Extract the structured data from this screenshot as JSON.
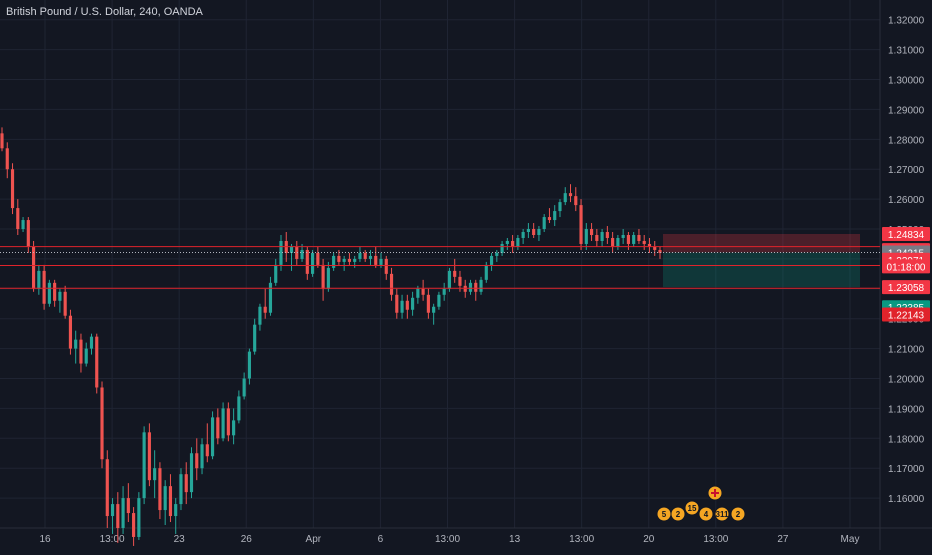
{
  "header": {
    "symbol_title": "British Pound / U.S. Dollar, 240, OANDA"
  },
  "colors": {
    "background": "#131722",
    "grid": "#1f2433",
    "text": "#b2b5be",
    "up": "#26a69a",
    "down": "#ef5350",
    "hline": "#e0232b",
    "current_price_tag": "#787b86",
    "stop_zone": "#f23645",
    "target_zone": "#089981"
  },
  "chart_data": {
    "type": "candlestick",
    "symbol": "GBPUSD",
    "interval": "240",
    "source": "OANDA",
    "ylim": [
      1.15,
      1.3266
    ],
    "y_ticks": [
      "1.32000",
      "1.31000",
      "1.30000",
      "1.29000",
      "1.28000",
      "1.27000",
      "1.26000",
      "1.25000",
      "1.24000",
      "1.23000",
      "1.22000",
      "1.21000",
      "1.20000",
      "1.19000",
      "1.18000",
      "1.17000",
      "1.16000"
    ],
    "x_ticks": [
      "16",
      "13:00",
      "23",
      "26",
      "Apr",
      "6",
      "13:00",
      "13",
      "13:00",
      "20",
      "13:00",
      "27",
      "May"
    ],
    "price_levels": [
      {
        "label": "1.24834",
        "value": 1.24834,
        "color": "#f23645"
      },
      {
        "label": "1.24296",
        "value": 1.24296,
        "color": "#f23645"
      },
      {
        "label": "1.24215",
        "value": 1.24215,
        "color": "#787b86"
      },
      {
        "label": "1.23971",
        "value": 1.23971,
        "color": "#f23645"
      },
      {
        "label": "01:18:00",
        "value": 1.2375,
        "color": "#f23645"
      },
      {
        "label": "1.23058",
        "value": 1.23058,
        "color": "#f23645"
      },
      {
        "label": "1.22385",
        "value": 1.22385,
        "color": "#089981"
      },
      {
        "label": "1.22143",
        "value": 1.22143,
        "color": "#e0232b"
      }
    ],
    "horizontal_lines": [
      1.2441,
      1.2378,
      1.2302
    ],
    "dotted_line": 1.24215,
    "position_tool": {
      "entry": 1.24215,
      "stop": 1.24834,
      "target": 1.23058
    },
    "events": [
      "5",
      "2",
      "15",
      "4",
      "311",
      "2"
    ],
    "candles": [
      [
        1.282,
        1.284,
        1.276,
        1.277
      ],
      [
        1.277,
        1.279,
        1.267,
        1.27
      ],
      [
        1.27,
        1.272,
        1.255,
        1.257
      ],
      [
        1.257,
        1.26,
        1.248,
        1.25
      ],
      [
        1.25,
        1.254,
        1.249,
        1.253
      ],
      [
        1.253,
        1.254,
        1.242,
        1.244
      ],
      [
        1.244,
        1.246,
        1.229,
        1.23
      ],
      [
        1.23,
        1.238,
        1.228,
        1.236
      ],
      [
        1.236,
        1.238,
        1.223,
        1.225
      ],
      [
        1.225,
        1.233,
        1.224,
        1.232
      ],
      [
        1.232,
        1.233,
        1.224,
        1.226
      ],
      [
        1.226,
        1.23,
        1.222,
        1.229
      ],
      [
        1.229,
        1.231,
        1.22,
        1.221
      ],
      [
        1.221,
        1.223,
        1.208,
        1.21
      ],
      [
        1.21,
        1.216,
        1.205,
        1.213
      ],
      [
        1.213,
        1.215,
        1.202,
        1.205
      ],
      [
        1.205,
        1.212,
        1.204,
        1.21
      ],
      [
        1.21,
        1.215,
        1.208,
        1.214
      ],
      [
        1.214,
        1.215,
        1.195,
        1.197
      ],
      [
        1.197,
        1.199,
        1.17,
        1.173
      ],
      [
        1.173,
        1.176,
        1.15,
        1.154
      ],
      [
        1.154,
        1.16,
        1.148,
        1.158
      ],
      [
        1.158,
        1.162,
        1.145,
        1.15
      ],
      [
        1.15,
        1.164,
        1.148,
        1.16
      ],
      [
        1.16,
        1.165,
        1.152,
        1.155
      ],
      [
        1.155,
        1.157,
        1.144,
        1.147
      ],
      [
        1.147,
        1.162,
        1.146,
        1.16
      ],
      [
        1.16,
        1.184,
        1.158,
        1.182
      ],
      [
        1.182,
        1.185,
        1.164,
        1.166
      ],
      [
        1.166,
        1.176,
        1.16,
        1.17
      ],
      [
        1.17,
        1.172,
        1.153,
        1.156
      ],
      [
        1.156,
        1.166,
        1.151,
        1.164
      ],
      [
        1.164,
        1.168,
        1.152,
        1.154
      ],
      [
        1.154,
        1.16,
        1.148,
        1.158
      ],
      [
        1.158,
        1.17,
        1.156,
        1.168
      ],
      [
        1.168,
        1.172,
        1.158,
        1.162
      ],
      [
        1.162,
        1.177,
        1.16,
        1.175
      ],
      [
        1.175,
        1.18,
        1.166,
        1.17
      ],
      [
        1.17,
        1.18,
        1.168,
        1.178
      ],
      [
        1.178,
        1.185,
        1.172,
        1.174
      ],
      [
        1.174,
        1.189,
        1.173,
        1.187
      ],
      [
        1.187,
        1.19,
        1.178,
        1.18
      ],
      [
        1.18,
        1.192,
        1.179,
        1.19
      ],
      [
        1.19,
        1.192,
        1.179,
        1.181
      ],
      [
        1.181,
        1.19,
        1.178,
        1.186
      ],
      [
        1.186,
        1.196,
        1.185,
        1.194
      ],
      [
        1.194,
        1.202,
        1.193,
        1.2
      ],
      [
        1.2,
        1.21,
        1.198,
        1.209
      ],
      [
        1.209,
        1.22,
        1.208,
        1.218
      ],
      [
        1.218,
        1.225,
        1.216,
        1.224
      ],
      [
        1.224,
        1.23,
        1.22,
        1.222
      ],
      [
        1.222,
        1.234,
        1.221,
        1.232
      ],
      [
        1.232,
        1.24,
        1.231,
        1.238
      ],
      [
        1.238,
        1.248,
        1.236,
        1.246
      ],
      [
        1.246,
        1.249,
        1.239,
        1.242
      ],
      [
        1.242,
        1.245,
        1.236,
        1.244
      ],
      [
        1.244,
        1.246,
        1.238,
        1.24
      ],
      [
        1.24,
        1.245,
        1.239,
        1.243
      ],
      [
        1.243,
        1.244,
        1.233,
        1.235
      ],
      [
        1.235,
        1.243,
        1.234,
        1.242
      ],
      [
        1.242,
        1.244,
        1.237,
        1.238
      ],
      [
        1.238,
        1.24,
        1.226,
        1.23
      ],
      [
        1.23,
        1.239,
        1.229,
        1.237
      ],
      [
        1.237,
        1.242,
        1.236,
        1.241
      ],
      [
        1.241,
        1.243,
        1.238,
        1.239
      ],
      [
        1.239,
        1.241,
        1.236,
        1.24
      ],
      [
        1.24,
        1.242,
        1.238,
        1.239
      ],
      [
        1.239,
        1.241,
        1.237,
        1.24
      ],
      [
        1.24,
        1.244,
        1.239,
        1.242
      ],
      [
        1.242,
        1.243,
        1.239,
        1.24
      ],
      [
        1.24,
        1.243,
        1.238,
        1.241
      ],
      [
        1.241,
        1.244,
        1.237,
        1.238
      ],
      [
        1.238,
        1.242,
        1.237,
        1.24
      ],
      [
        1.24,
        1.241,
        1.233,
        1.235
      ],
      [
        1.235,
        1.237,
        1.226,
        1.228
      ],
      [
        1.228,
        1.23,
        1.22,
        1.222
      ],
      [
        1.222,
        1.228,
        1.22,
        1.226
      ],
      [
        1.226,
        1.228,
        1.22,
        1.223
      ],
      [
        1.223,
        1.229,
        1.221,
        1.227
      ],
      [
        1.227,
        1.231,
        1.225,
        1.23
      ],
      [
        1.23,
        1.233,
        1.226,
        1.228
      ],
      [
        1.228,
        1.23,
        1.22,
        1.222
      ],
      [
        1.222,
        1.225,
        1.218,
        1.224
      ],
      [
        1.224,
        1.229,
        1.223,
        1.228
      ],
      [
        1.228,
        1.232,
        1.226,
        1.23
      ],
      [
        1.23,
        1.237,
        1.229,
        1.236
      ],
      [
        1.236,
        1.24,
        1.232,
        1.234
      ],
      [
        1.234,
        1.236,
        1.229,
        1.231
      ],
      [
        1.231,
        1.233,
        1.227,
        1.229
      ],
      [
        1.229,
        1.233,
        1.228,
        1.232
      ],
      [
        1.232,
        1.233,
        1.226,
        1.229
      ],
      [
        1.229,
        1.234,
        1.228,
        1.233
      ],
      [
        1.233,
        1.239,
        1.232,
        1.238
      ],
      [
        1.238,
        1.242,
        1.236,
        1.241
      ],
      [
        1.241,
        1.243,
        1.239,
        1.242
      ],
      [
        1.242,
        1.246,
        1.241,
        1.245
      ],
      [
        1.245,
        1.247,
        1.243,
        1.246
      ],
      [
        1.246,
        1.248,
        1.242,
        1.244
      ],
      [
        1.244,
        1.248,
        1.243,
        1.247
      ],
      [
        1.247,
        1.25,
        1.245,
        1.249
      ],
      [
        1.249,
        1.252,
        1.247,
        1.25
      ],
      [
        1.25,
        1.252,
        1.247,
        1.248
      ],
      [
        1.248,
        1.251,
        1.246,
        1.25
      ],
      [
        1.25,
        1.255,
        1.249,
        1.254
      ],
      [
        1.254,
        1.257,
        1.252,
        1.253
      ],
      [
        1.253,
        1.258,
        1.251,
        1.256
      ],
      [
        1.256,
        1.26,
        1.254,
        1.259
      ],
      [
        1.259,
        1.264,
        1.258,
        1.262
      ],
      [
        1.262,
        1.265,
        1.259,
        1.261
      ],
      [
        1.261,
        1.264,
        1.256,
        1.258
      ],
      [
        1.258,
        1.26,
        1.243,
        1.245
      ],
      [
        1.245,
        1.252,
        1.243,
        1.25
      ],
      [
        1.25,
        1.252,
        1.246,
        1.248
      ],
      [
        1.248,
        1.25,
        1.244,
        1.246
      ],
      [
        1.246,
        1.25,
        1.244,
        1.249
      ],
      [
        1.249,
        1.251,
        1.245,
        1.247
      ],
      [
        1.247,
        1.249,
        1.242,
        1.244
      ],
      [
        1.244,
        1.248,
        1.243,
        1.247
      ],
      [
        1.247,
        1.25,
        1.245,
        1.248
      ],
      [
        1.248,
        1.249,
        1.243,
        1.245
      ],
      [
        1.245,
        1.249,
        1.244,
        1.248
      ],
      [
        1.248,
        1.25,
        1.245,
        1.246
      ],
      [
        1.246,
        1.248,
        1.243,
        1.245
      ],
      [
        1.245,
        1.247,
        1.242,
        1.244
      ],
      [
        1.244,
        1.246,
        1.241,
        1.243
      ],
      [
        1.243,
        1.244,
        1.24,
        1.242
      ]
    ]
  }
}
